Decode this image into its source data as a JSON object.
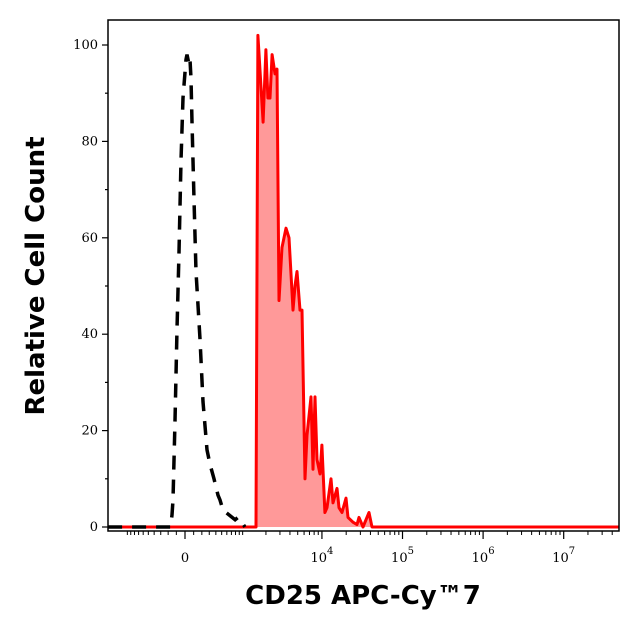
{
  "chart_data": {
    "type": "area",
    "xlabel": "CD25 APC-Cy™7",
    "ylabel": "Relative Cell Count",
    "x_scale": "biexponential",
    "xlim": [
      -1780,
      49000000
    ],
    "ylim": [
      0,
      100
    ],
    "x_ticks": [
      {
        "value": 0,
        "base": "0",
        "exp": ""
      },
      {
        "value": 10000,
        "base": "10",
        "exp": "4"
      },
      {
        "value": 100000,
        "base": "10",
        "exp": "5"
      },
      {
        "value": 1000000,
        "base": "10",
        "exp": "6"
      },
      {
        "value": 10000000,
        "base": "10",
        "exp": "7"
      }
    ],
    "y_ticks": [
      0,
      20,
      40,
      60,
      80,
      100
    ],
    "grid": false,
    "series": [
      {
        "style": "dashed-line",
        "color": "#000000",
        "points": [
          [
            -1780,
            0
          ],
          [
            -170,
            0
          ],
          [
            -152,
            2.5
          ],
          [
            -140,
            5.6
          ],
          [
            -116,
            22
          ],
          [
            -92,
            41
          ],
          [
            -69,
            57
          ],
          [
            -46,
            76
          ],
          [
            -23,
            89
          ],
          [
            11,
            97
          ],
          [
            23,
            98
          ],
          [
            46,
            96
          ],
          [
            57,
            97
          ],
          [
            69,
            93
          ],
          [
            80,
            84
          ],
          [
            104,
            68
          ],
          [
            128,
            53
          ],
          [
            177,
            39
          ],
          [
            215,
            26
          ],
          [
            268,
            16
          ],
          [
            311,
            13
          ],
          [
            371,
            10
          ],
          [
            436,
            6.6
          ],
          [
            470,
            5.6
          ],
          [
            524,
            3.5
          ],
          [
            788,
            1.5
          ],
          [
            864,
            2
          ],
          [
            980,
            1
          ],
          [
            1072,
            0
          ]
        ]
      },
      {
        "style": "filled",
        "color": "#ff0000",
        "fill": "#ff9999",
        "points": [
          [
            -1780,
            0
          ],
          [
            1496,
            0
          ],
          [
            1580,
            102
          ],
          [
            1840,
            84
          ],
          [
            2000,
            99
          ],
          [
            2120,
            89
          ],
          [
            2250,
            89
          ],
          [
            2390,
            98
          ],
          [
            2600,
            94
          ],
          [
            2760,
            95
          ],
          [
            2920,
            47
          ],
          [
            3180,
            58
          ],
          [
            3570,
            62
          ],
          [
            3890,
            60
          ],
          [
            4370,
            45
          ],
          [
            4630,
            50
          ],
          [
            4900,
            53
          ],
          [
            5340,
            45
          ],
          [
            5650,
            45
          ],
          [
            6160,
            10
          ],
          [
            6520,
            19
          ],
          [
            7320,
            27
          ],
          [
            7740,
            12
          ],
          [
            8200,
            27
          ],
          [
            8680,
            14
          ],
          [
            9450,
            11
          ],
          [
            10000,
            17
          ],
          [
            10900,
            3
          ],
          [
            11560,
            4
          ],
          [
            12960,
            10
          ],
          [
            13720,
            5
          ],
          [
            15400,
            8
          ],
          [
            16300,
            4
          ],
          [
            17760,
            3
          ],
          [
            19900,
            6
          ],
          [
            21060,
            2
          ],
          [
            24300,
            1
          ],
          [
            27240,
            0.5
          ],
          [
            28840,
            2
          ],
          [
            32360,
            0
          ],
          [
            38370,
            3
          ],
          [
            41800,
            0
          ],
          [
            49000000,
            0
          ]
        ]
      }
    ]
  }
}
